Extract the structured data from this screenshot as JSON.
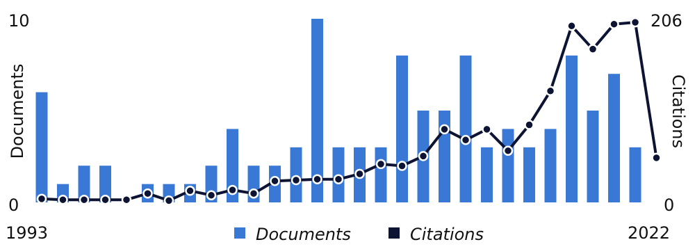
{
  "chart_data": {
    "type": "bar+line",
    "x_start": "1993",
    "x_end": "2022",
    "years": [
      1993,
      1994,
      1995,
      1996,
      1997,
      1998,
      1999,
      2000,
      2001,
      2002,
      2003,
      2004,
      2005,
      2006,
      2007,
      2008,
      2009,
      2010,
      2011,
      2012,
      2013,
      2014,
      2015,
      2016,
      2017,
      2018,
      2019,
      2020,
      2021,
      2022
    ],
    "series": [
      {
        "name": "Documents",
        "type": "bar",
        "axis": "left",
        "color": "#3a78d6",
        "values": [
          6,
          1,
          2,
          2,
          0,
          1,
          1,
          1,
          2,
          4,
          2,
          2,
          3,
          10,
          3,
          3,
          3,
          8,
          5,
          5,
          8,
          3,
          4,
          3,
          4,
          8,
          5,
          7,
          3,
          0
        ]
      },
      {
        "name": "Citations",
        "type": "line",
        "axis": "right",
        "color": "#0d1433",
        "values": [
          4,
          3,
          3,
          3,
          3,
          10,
          2,
          13,
          8,
          14,
          10,
          24,
          25,
          26,
          26,
          32,
          43,
          41,
          52,
          82,
          70,
          82,
          58,
          87,
          125,
          198,
          172,
          200,
          202,
          50
        ]
      }
    ],
    "y_left": {
      "label": "Documents",
      "ylim": [
        0,
        10
      ],
      "ticks": [
        "0",
        "10"
      ]
    },
    "y_right": {
      "label": "Citations",
      "ylim": [
        0,
        206
      ],
      "ticks": [
        "0",
        "206"
      ]
    },
    "legend": {
      "position": "bottom-center",
      "entries": [
        "Documents",
        "Citations"
      ]
    },
    "grid": false
  }
}
